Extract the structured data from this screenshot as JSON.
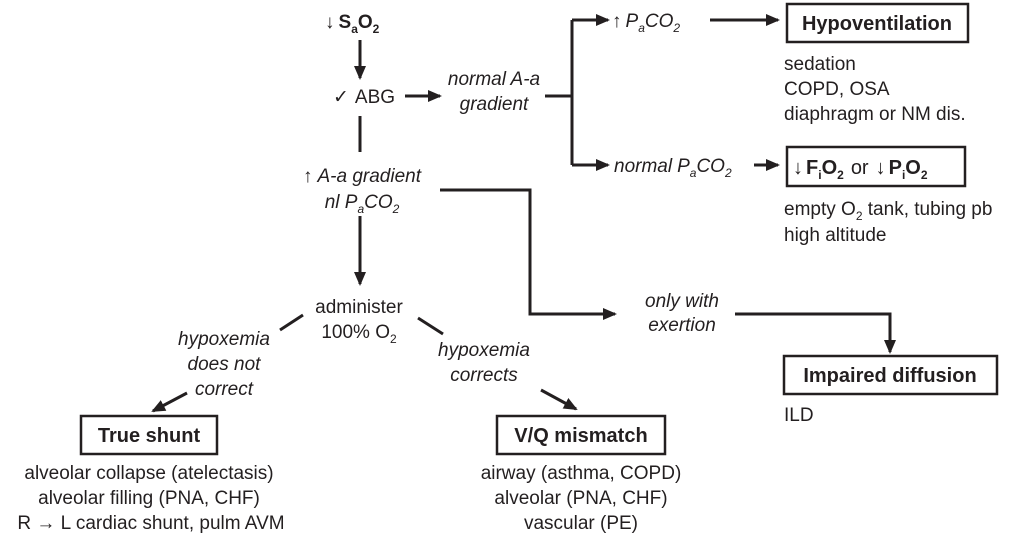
{
  "start": {
    "arrow": "↓",
    "s": "S",
    "s_sub": "a",
    "o": "O",
    "o_sub": "2"
  },
  "abg": {
    "check": "✓",
    "label": "ABG"
  },
  "normal_aa": {
    "line1": "normal A-a",
    "line2": "gradient"
  },
  "up_paco2": {
    "arrow": "↑",
    "p": "P",
    "p_sub": "a",
    "co": "CO",
    "co_sub": "2"
  },
  "hypoventilation": {
    "title": "Hypoventilation",
    "causes": [
      "sedation",
      "COPD, OSA",
      "diaphragm or NM dis."
    ]
  },
  "normal_paco2": {
    "prefix": "normal",
    "p": "P",
    "p_sub": "a",
    "co": "CO",
    "co_sub": "2"
  },
  "low_fio2": {
    "a1": "↓",
    "f": "F",
    "f_sub": "i",
    "o1": "O",
    "o1_sub": "2",
    "or": "or",
    "a2": "↓",
    "p": "P",
    "p_sub": "i",
    "o2": "O",
    "o2_sub": "2",
    "cause1_pre": "empty O",
    "cause1_sub": "2",
    "cause1_post": " tank, tubing pb",
    "cause2": "high altitude"
  },
  "up_aa": {
    "arrow": "↑",
    "line1": "A-a gradient",
    "nl": "nl P",
    "p_sub": "a",
    "co": "CO",
    "co_sub": "2"
  },
  "administer": {
    "line1": "administer",
    "line2_pre": "100% O",
    "line2_sub": "2"
  },
  "not_correct": {
    "line1": "hypoxemia",
    "line2": "does not",
    "line3": "correct"
  },
  "corrects": {
    "line1": "hypoxemia",
    "line2": "corrects"
  },
  "exertion": {
    "line1": "only with",
    "line2": "exertion"
  },
  "true_shunt": {
    "title": "True shunt",
    "causes": [
      "alveolar collapse (atelectasis)",
      "alveolar filling (PNA, CHF)",
      "R → L cardiac shunt, pulm AVM"
    ]
  },
  "vq_mismatch": {
    "title": "V/Q mismatch",
    "causes": [
      "airway (asthma, COPD)",
      "alveolar (PNA, CHF)",
      "vascular (PE)"
    ]
  },
  "impaired_diffusion": {
    "title": "Impaired diffusion",
    "causes": [
      "ILD"
    ]
  },
  "colors": {
    "ink": "#231f20",
    "background": "#ffffff"
  }
}
